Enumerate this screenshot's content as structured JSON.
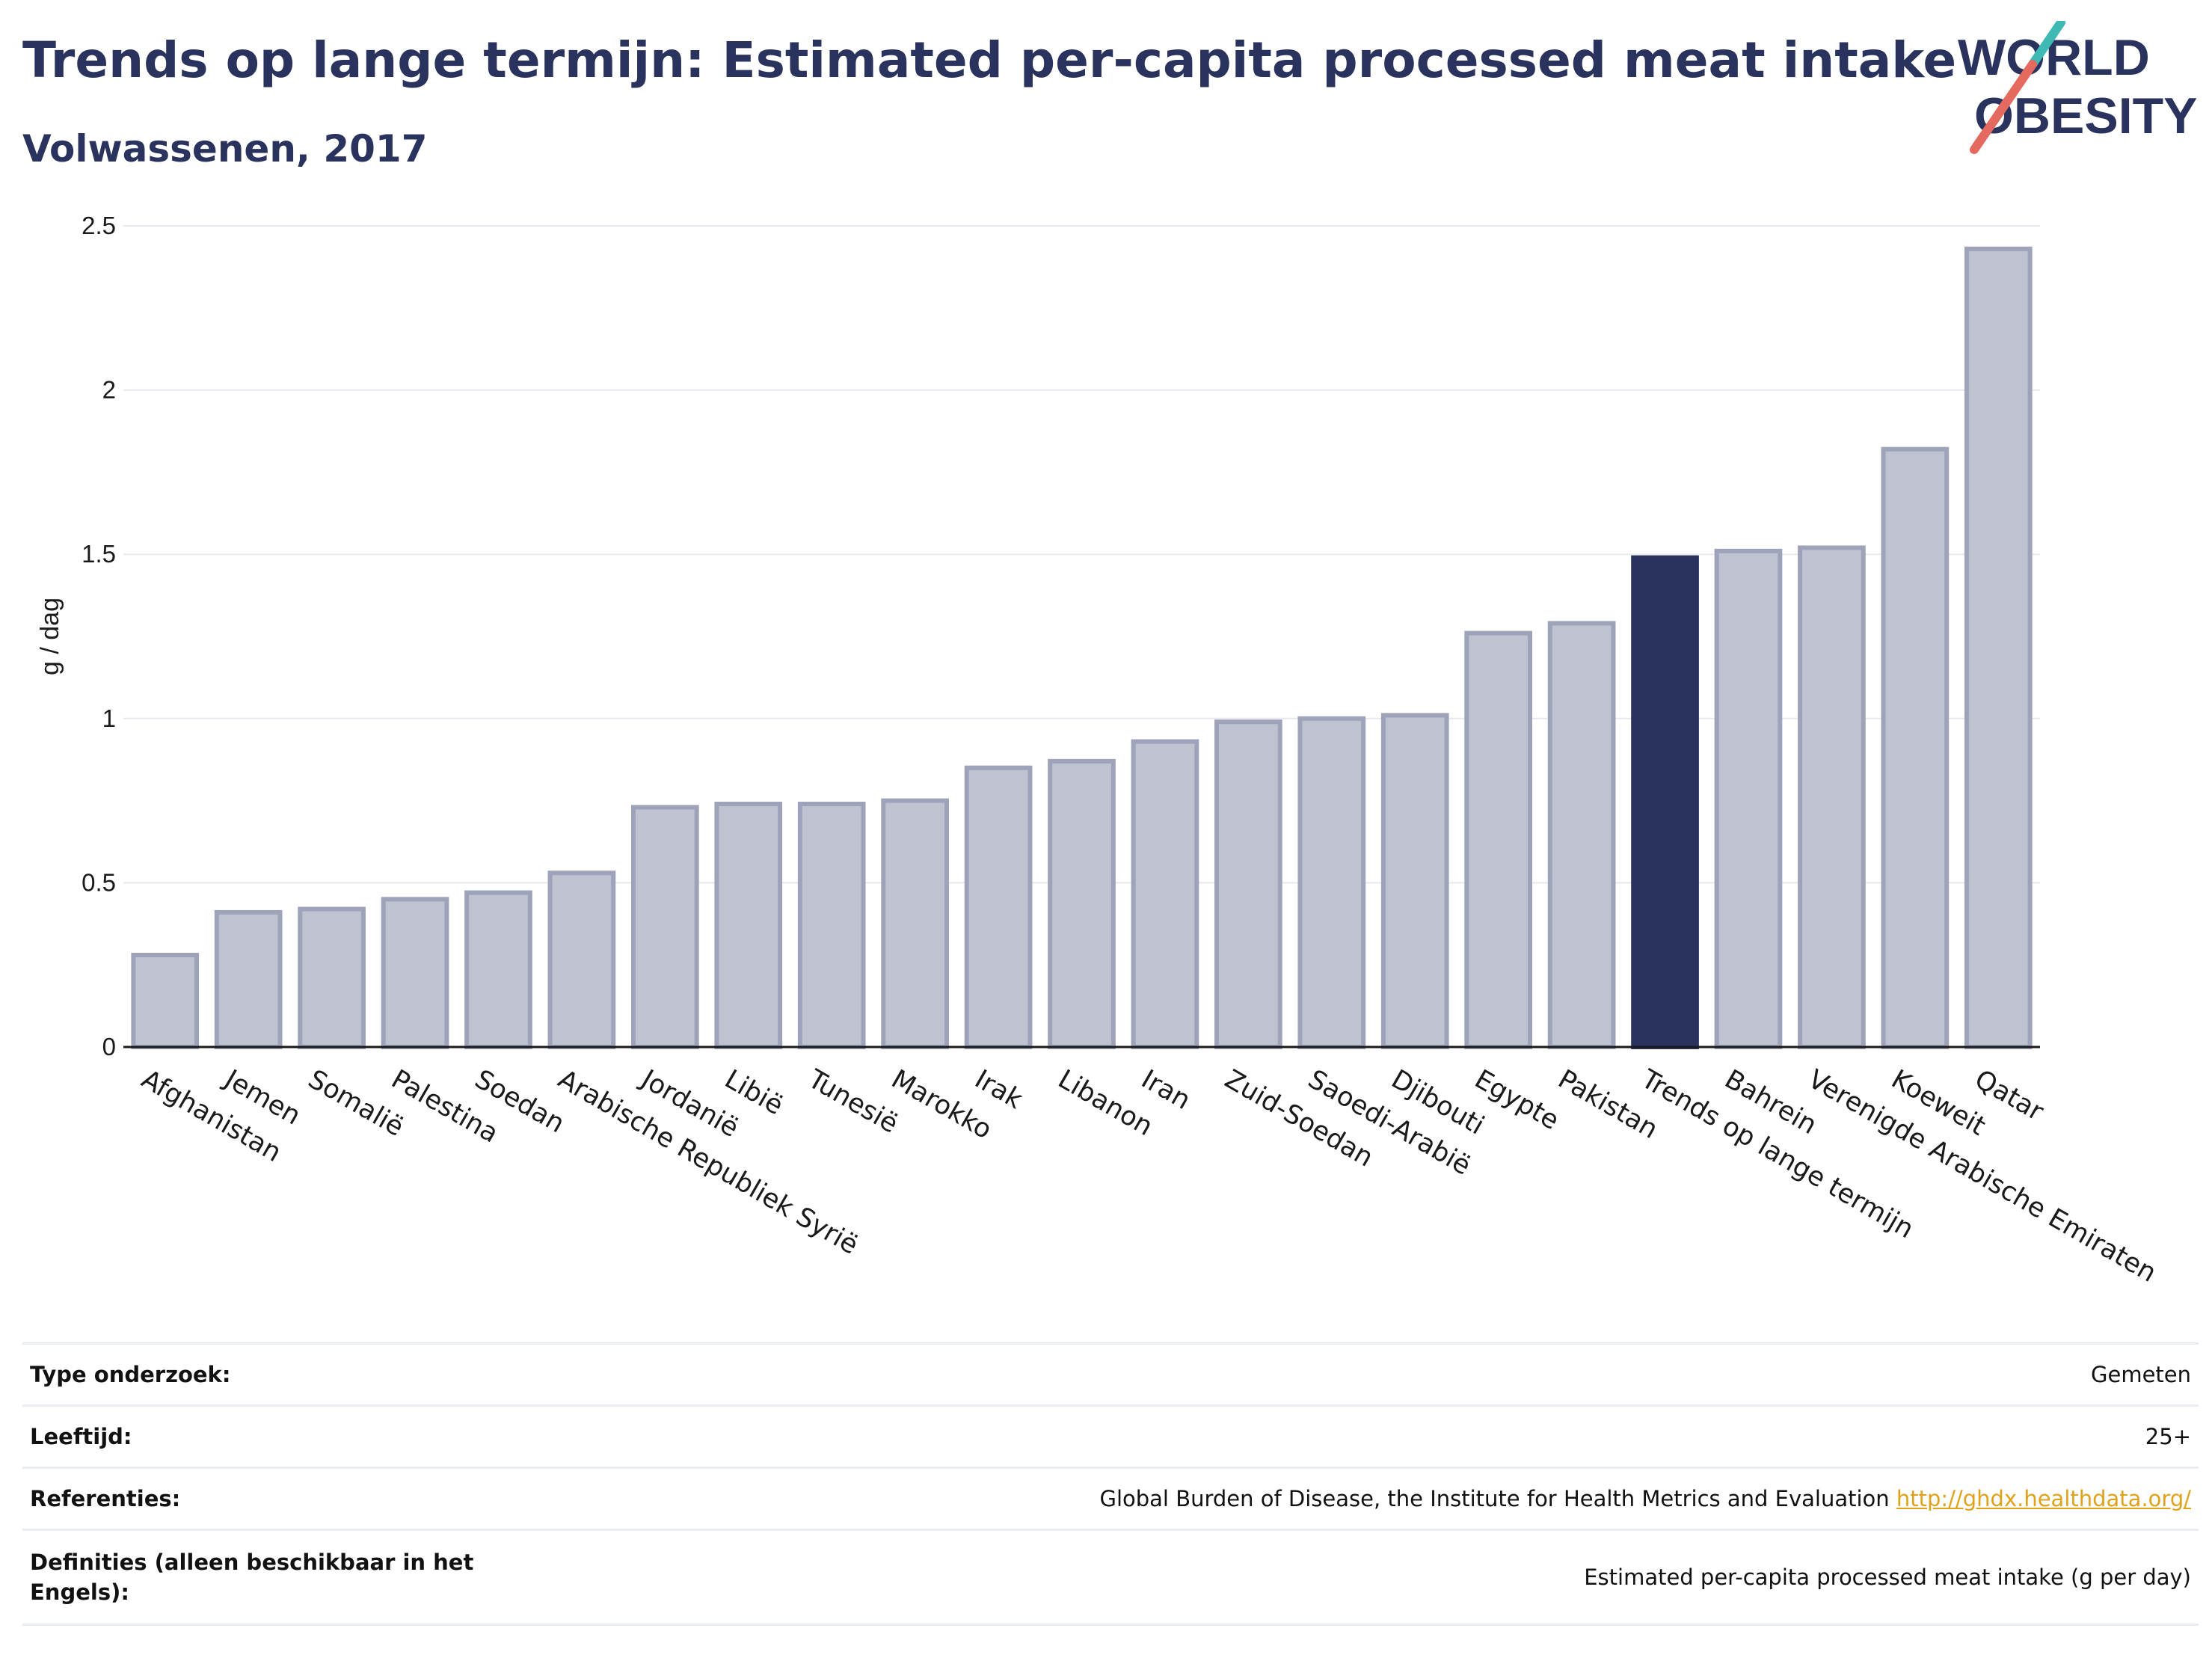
{
  "header": {
    "title": "Trends op lange termijn: Estimated per-capita processed meat intake",
    "subtitle": "Volwassenen, 2017"
  },
  "logo": {
    "line1": "WORLD",
    "line2": "OBESITY",
    "text_color": "#2a335e",
    "slash_colors": [
      "#e4695e",
      "#3fb9b4"
    ]
  },
  "chart_data": {
    "type": "bar",
    "ylabel": "g / dag",
    "ylim": [
      0,
      2.5
    ],
    "yticks": [
      {
        "value": 0,
        "label": "0"
      },
      {
        "value": 0.5,
        "label": "0.5"
      },
      {
        "value": 1,
        "label": "1"
      },
      {
        "value": 1.5,
        "label": "1.5"
      },
      {
        "value": 2,
        "label": "2"
      },
      {
        "value": 2.5,
        "label": "2.5"
      }
    ],
    "grid": true,
    "categories": [
      "Afghanistan",
      "Jemen",
      "Somalië",
      "Palestina",
      "Soedan",
      "Arabische Republiek Syrië",
      "Jordanië",
      "Libië",
      "Tunesië",
      "Marokko",
      "Irak",
      "Libanon",
      "Iran",
      "Zuid-Soedan",
      "Saoedi-Arabië",
      "Djibouti",
      "Egypte",
      "Pakistan",
      "Trends op lange termijn",
      "Bahrein",
      "Verenigde Arabische Emiraten",
      "Koeweit",
      "Qatar"
    ],
    "values": [
      0.28,
      0.41,
      0.42,
      0.45,
      0.47,
      0.53,
      0.73,
      0.74,
      0.74,
      0.75,
      0.85,
      0.87,
      0.93,
      0.99,
      1.0,
      1.01,
      1.26,
      1.29,
      1.49,
      1.51,
      1.52,
      1.82,
      2.43
    ],
    "highlight": "Trends op lange termijn",
    "colors": {
      "bar_fill": "#bfc2d0",
      "bar_stroke": "#9ea3ba",
      "highlight_fill": "#2a335e",
      "grid": "#e6e8ee",
      "axis": "#1a1a1a"
    }
  },
  "info_table": [
    {
      "label": "Type onderzoek:",
      "value": "Gemeten"
    },
    {
      "label": "Leeftijd:",
      "value": "25+"
    },
    {
      "label": "Referenties:",
      "value": "Global Burden of Disease, the Institute for Health Metrics and Evaluation",
      "link": "http://ghdx.healthdata.org/"
    },
    {
      "label": "Definities (alleen beschikbaar in het Engels):",
      "value": "Estimated per-capita processed meat intake (g per day)"
    }
  ]
}
